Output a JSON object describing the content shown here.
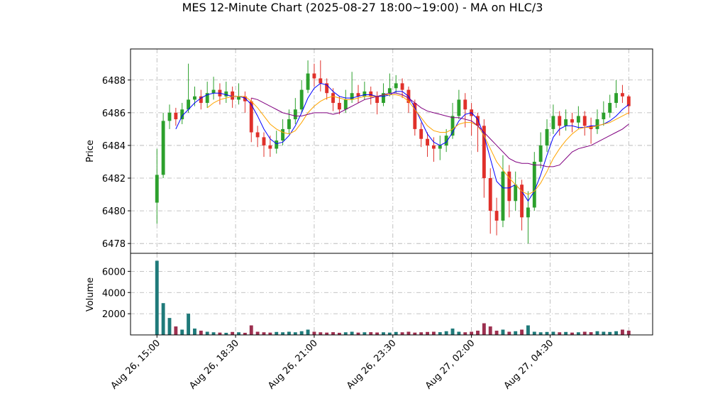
{
  "chart_data": {
    "type": "candlestick",
    "title": "MES 12-Minute Chart (2025-08-27 18:00~19:00) - MA on HLC/3",
    "grid": true,
    "up_color": "#2ca02c",
    "down_color": "#e0302a",
    "volume_up_color": "#1f7a7a",
    "volume_down_color": "#9c2f4f",
    "xlim": [
      -4.2,
      78.8
    ],
    "xticks": [
      {
        "value": 0,
        "label": "Aug 26, 15:00"
      },
      {
        "value": 12.5,
        "label": "Aug 26, 18:30"
      },
      {
        "value": 25,
        "label": "Aug 26, 21:00"
      },
      {
        "value": 37.5,
        "label": "Aug 26, 23:30"
      },
      {
        "value": 50,
        "label": "Aug 27, 02:00"
      },
      {
        "value": 62.5,
        "label": "Aug 27, 04:30"
      },
      {
        "value": 75,
        "label": null
      }
    ],
    "price_panel": {
      "ylabel": "Price",
      "ylim": [
        6477.4,
        6489.9
      ],
      "yticks": [
        6478,
        6480,
        6482,
        6484,
        6486,
        6488
      ]
    },
    "volume_panel": {
      "ylabel": "Volume",
      "ylim": [
        0,
        7700
      ],
      "yticks": [
        2000,
        4000,
        6000
      ]
    },
    "open": [
      6480.5,
      6482.2,
      6485.5,
      6486.0,
      6485.6,
      6486.2,
      6486.8,
      6487.0,
      6486.6,
      6487.2,
      6487.4,
      6487.0,
      6487.3,
      6486.8,
      6487.0,
      6486.7,
      6484.8,
      6484.5,
      6484.0,
      6483.8,
      6484.3,
      6485.0,
      6485.6,
      6486.2,
      6487.4,
      6488.4,
      6488.1,
      6487.8,
      6487.2,
      6486.6,
      6486.2,
      6486.8,
      6487.2,
      6487.0,
      6487.3,
      6487.0,
      6486.6,
      6487.2,
      6487.5,
      6487.8,
      6487.4,
      6486.6,
      6485.0,
      6484.4,
      6484.0,
      6483.8,
      6484.0,
      6484.6,
      6485.8,
      6486.8,
      6486.2,
      6485.8,
      6485.2,
      6482.0,
      6480.0,
      6479.4,
      6482.4,
      6480.6,
      6481.6,
      6479.6,
      6480.2,
      6483.0,
      6484.0,
      6485.0,
      6485.8,
      6485.2,
      6485.6,
      6485.4,
      6485.8,
      6485.2,
      6485.0,
      6485.6,
      6486.0,
      6486.6,
      6487.2,
      6487.0
    ],
    "high": [
      6483.8,
      6486.0,
      6486.5,
      6486.3,
      6486.6,
      6489.0,
      6487.6,
      6487.4,
      6487.9,
      6488.2,
      6487.8,
      6487.9,
      6487.6,
      6487.8,
      6487.3,
      6486.9,
      6485.2,
      6484.8,
      6484.6,
      6484.9,
      6485.6,
      6486.2,
      6486.9,
      6488.0,
      6489.2,
      6489.0,
      6489.2,
      6488.1,
      6487.5,
      6487.0,
      6487.4,
      6488.5,
      6487.7,
      6487.9,
      6487.6,
      6487.3,
      6487.8,
      6488.4,
      6488.3,
      6488.1,
      6487.6,
      6486.8,
      6485.4,
      6484.8,
      6484.5,
      6484.6,
      6485.0,
      6486.6,
      6487.4,
      6487.2,
      6486.6,
      6486.0,
      6485.6,
      6482.6,
      6480.8,
      6483.4,
      6482.8,
      6482.4,
      6481.9,
      6481.2,
      6483.6,
      6484.8,
      6485.6,
      6486.5,
      6486.1,
      6486.2,
      6486.0,
      6486.4,
      6486.1,
      6485.7,
      6486.2,
      6486.7,
      6487.1,
      6488.0,
      6487.7,
      6487.1
    ],
    "low": [
      6479.2,
      6482.0,
      6485.0,
      6485.2,
      6485.3,
      6486.0,
      6486.4,
      6486.2,
      6486.3,
      6486.8,
      6486.5,
      6486.6,
      6486.3,
      6486.5,
      6486.0,
      6484.2,
      6483.9,
      6483.3,
      6483.3,
      6483.5,
      6484.0,
      6484.7,
      6485.3,
      6486.0,
      6487.2,
      6487.6,
      6487.3,
      6486.8,
      6486.1,
      6485.9,
      6486.0,
      6486.6,
      6486.6,
      6486.8,
      6486.5,
      6485.9,
      6486.4,
      6487.0,
      6487.2,
      6486.9,
      6486.0,
      6484.6,
      6483.9,
      6483.3,
      6483.0,
      6483.1,
      6483.6,
      6484.4,
      6485.6,
      6485.1,
      6484.6,
      6483.6,
      6480.8,
      6478.6,
      6478.5,
      6479.0,
      6479.6,
      6480.0,
      6478.8,
      6478.0,
      6480.0,
      6482.6,
      6483.6,
      6484.7,
      6484.6,
      6484.9,
      6484.8,
      6485.0,
      6484.6,
      6484.1,
      6484.7,
      6485.2,
      6485.7,
      6486.3,
      6486.6,
      6485.9
    ],
    "close": [
      6482.2,
      6485.5,
      6486.0,
      6485.6,
      6486.2,
      6486.8,
      6487.0,
      6486.6,
      6487.2,
      6487.4,
      6487.0,
      6487.3,
      6486.8,
      6487.0,
      6486.7,
      6484.8,
      6484.5,
      6484.0,
      6483.8,
      6484.3,
      6485.0,
      6485.6,
      6486.2,
      6487.4,
      6488.4,
      6488.1,
      6487.8,
      6487.2,
      6486.6,
      6486.2,
      6486.8,
      6487.2,
      6487.0,
      6487.3,
      6487.0,
      6486.6,
      6487.2,
      6487.5,
      6487.8,
      6487.4,
      6486.6,
      6485.0,
      6484.4,
      6484.0,
      6483.8,
      6484.0,
      6484.6,
      6485.8,
      6486.8,
      6486.2,
      6485.8,
      6485.2,
      6482.0,
      6480.0,
      6479.4,
      6482.4,
      6480.6,
      6481.6,
      6479.6,
      6480.2,
      6483.0,
      6484.0,
      6485.0,
      6485.8,
      6485.2,
      6485.6,
      6485.4,
      6485.8,
      6485.2,
      6485.0,
      6485.6,
      6486.0,
      6486.6,
      6487.2,
      6487.0,
      6486.4
    ],
    "volume": [
      7000,
      3000,
      1600,
      800,
      500,
      2000,
      600,
      400,
      300,
      250,
      220,
      200,
      280,
      250,
      200,
      900,
      300,
      250,
      220,
      280,
      250,
      300,
      250,
      350,
      500,
      300,
      250,
      220,
      260,
      200,
      250,
      300,
      220,
      250,
      260,
      230,
      250,
      220,
      280,
      250,
      300,
      220,
      250,
      280,
      300,
      260,
      350,
      600,
      300,
      250,
      300,
      400,
      1100,
      800,
      400,
      500,
      300,
      350,
      500,
      900,
      300,
      250,
      280,
      300,
      250,
      280,
      220,
      250,
      300,
      260,
      350,
      300,
      280,
      350,
      500,
      400
    ],
    "moving_averages": [
      {
        "color": "#0000ff",
        "values": [
          null,
          null,
          null,
          6485.0,
          6485.8,
          6486.2,
          6486.6,
          6486.9,
          6487.1,
          6487.2,
          6487.2,
          6487.1,
          6487.0,
          6487.0,
          6486.9,
          6486.5,
          6485.8,
          6485.0,
          6484.4,
          6484.1,
          6484.2,
          6484.6,
          6485.2,
          6486.0,
          6486.9,
          6487.5,
          6487.8,
          6487.7,
          6487.3,
          6487.0,
          6486.9,
          6486.9,
          6487.0,
          6487.1,
          6487.1,
          6487.0,
          6487.0,
          6487.1,
          6487.3,
          6487.3,
          6487.0,
          6486.3,
          6485.5,
          6484.7,
          6484.2,
          6484.0,
          6484.2,
          6484.8,
          6485.5,
          6485.9,
          6486.0,
          6485.6,
          6484.6,
          6483.2,
          6481.8,
          6481.4,
          6481.4,
          6481.6,
          6481.2,
          6480.6,
          6481.2,
          6482.2,
          6483.4,
          6484.5,
          6485.0,
          6485.2,
          6485.2,
          6485.1,
          6485.1,
          6485.2,
          6485.2,
          6485.3,
          6485.5,
          6485.8,
          6486.2,
          6486.5
        ]
      },
      {
        "color": "#ffa500",
        "values": [
          null,
          null,
          null,
          null,
          null,
          null,
          null,
          null,
          6486.3,
          6486.6,
          6486.8,
          6486.9,
          6487.0,
          6487.0,
          6487.0,
          6486.7,
          6486.3,
          6485.8,
          6485.3,
          6485.0,
          6484.8,
          6484.7,
          6484.9,
          6485.4,
          6486.0,
          6486.4,
          6486.7,
          6486.9,
          6487.0,
          6486.9,
          6486.8,
          6486.8,
          6486.9,
          6487.0,
          6487.0,
          6487.0,
          6487.1,
          6487.1,
          6487.1,
          6487.0,
          6486.7,
          6486.2,
          6485.7,
          6485.2,
          6484.9,
          6484.8,
          6484.8,
          6485.0,
          6485.3,
          6485.4,
          6485.4,
          6485.2,
          6484.6,
          6483.8,
          6483.0,
          6482.5,
          6482.0,
          6481.6,
          6481.2,
          6481.0,
          6481.2,
          6481.7,
          6482.4,
          6483.2,
          6483.8,
          6484.3,
          6484.7,
          6485.0,
          6485.1,
          6485.1,
          6485.2,
          6485.3,
          6485.4,
          6485.6,
          6485.8,
          6486.0
        ]
      },
      {
        "color": "#800080",
        "values": [
          null,
          null,
          null,
          null,
          null,
          null,
          null,
          null,
          null,
          null,
          null,
          null,
          null,
          null,
          null,
          6486.9,
          6486.8,
          6486.6,
          6486.4,
          6486.2,
          6486.0,
          6485.9,
          6485.8,
          6485.8,
          6485.9,
          6486.0,
          6486.0,
          6486.0,
          6485.9,
          6486.0,
          6486.2,
          6486.4,
          6486.6,
          6486.8,
          6486.9,
          6487.0,
          6487.1,
          6487.2,
          6487.2,
          6487.1,
          6486.9,
          6486.6,
          6486.3,
          6486.1,
          6486.0,
          6485.9,
          6485.8,
          6485.7,
          6485.7,
          6485.6,
          6485.5,
          6485.2,
          6484.8,
          6484.4,
          6484.0,
          6483.6,
          6483.2,
          6483.0,
          6482.9,
          6482.9,
          6482.8,
          6482.8,
          6482.7,
          6482.7,
          6482.8,
          6483.2,
          6483.6,
          6483.8,
          6483.9,
          6484.0,
          6484.2,
          6484.4,
          6484.6,
          6484.8,
          6485.0,
          6485.3
        ]
      }
    ]
  }
}
